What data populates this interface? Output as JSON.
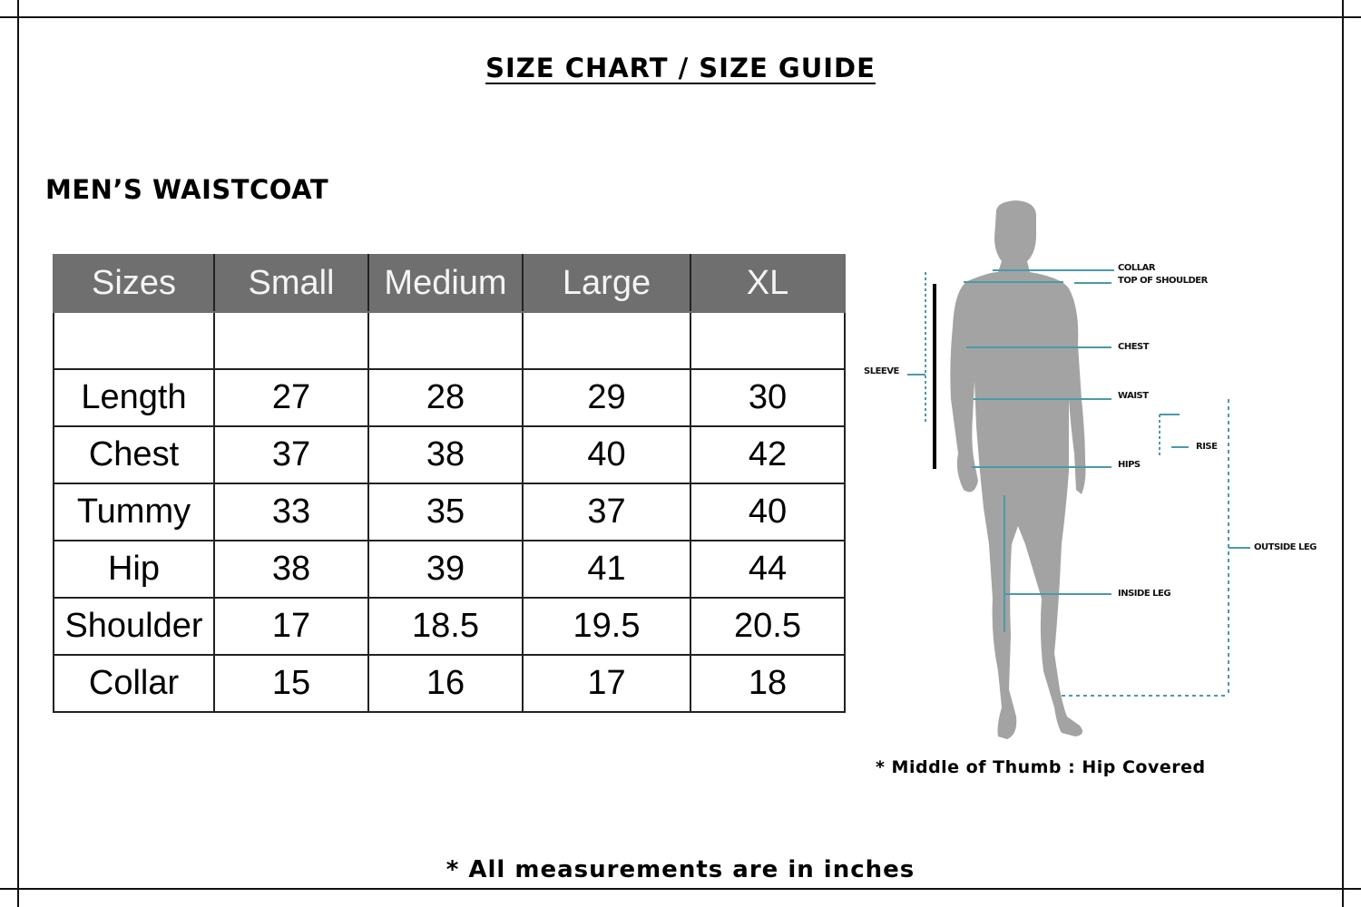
{
  "title": "SIZE CHART / SIZE GUIDE",
  "subtitle": "MEN’S WAISTCOAT",
  "table": {
    "headers": [
      "Sizes",
      "Small",
      "Medium",
      "Large",
      "XL"
    ],
    "rows": [
      [
        "",
        "",
        "",
        "",
        ""
      ],
      [
        "Length",
        "27",
        "28",
        "29",
        "30"
      ],
      [
        "Chest",
        "37",
        "38",
        "40",
        "42"
      ],
      [
        "Tummy",
        "33",
        "35",
        "37",
        "40"
      ],
      [
        "Hip",
        "38",
        "39",
        "41",
        "44"
      ],
      [
        "Shoulder",
        "17",
        "18.5",
        "19.5",
        "20.5"
      ],
      [
        "Collar",
        "15",
        "16",
        "17",
        "18"
      ]
    ]
  },
  "figure": {
    "labels": {
      "collar": "COLLAR",
      "top_of_shoulder": "TOP OF SHOULDER",
      "chest": "CHEST",
      "sleeve": "SLEEVE",
      "waist": "WAIST",
      "rise": "RISE",
      "hips": "HIPS",
      "outside_leg": "OUTSIDE LEG",
      "inside_leg": "INSIDE LEG"
    },
    "silhouette_color": "#a3a3a3",
    "line_color": "#4a9aa8"
  },
  "figure_note": "* Middle of Thumb : Hip Covered",
  "footer_note": "* All measurements are in inches"
}
